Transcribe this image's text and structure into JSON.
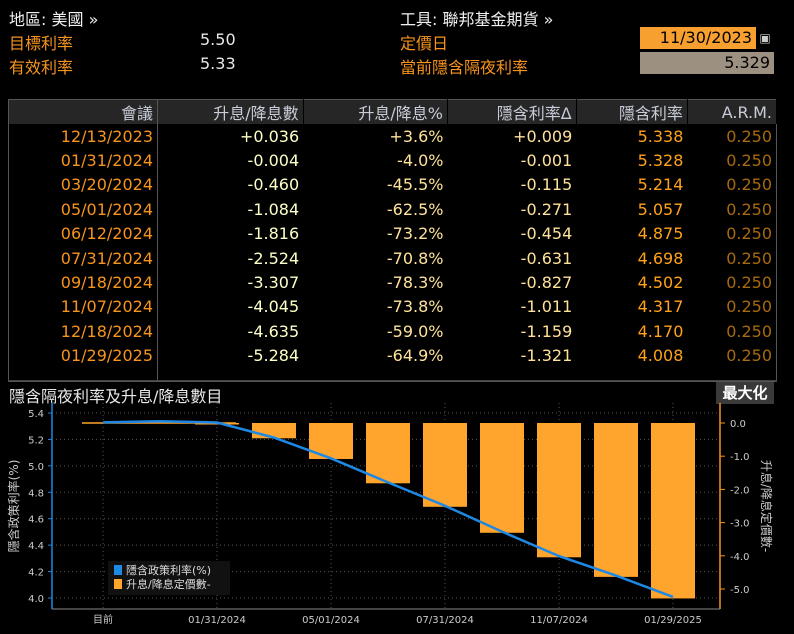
{
  "header": {
    "region_label": "地區: 美國 »",
    "instrument_label": "工具: 聯邦基金期貨 »",
    "target_rate_label": "目標利率",
    "target_rate_value": "5.50",
    "effective_rate_label": "有效利率",
    "effective_rate_value": "5.33",
    "pricing_date_label": "定價日",
    "pricing_date_value": "11/30/2023",
    "current_implied_label": "當前隱含隔夜利率",
    "current_implied_value": "5.329"
  },
  "table": {
    "columns": [
      "會議",
      "升息/降息數",
      "升息/降息%",
      "隱含利率Δ",
      "隱含利率",
      "A.R.M."
    ],
    "rows": [
      [
        "12/13/2023",
        "+0.036",
        "+3.6%",
        "+0.009",
        "5.338",
        "0.250"
      ],
      [
        "01/31/2024",
        "-0.004",
        "-4.0%",
        "-0.001",
        "5.328",
        "0.250"
      ],
      [
        "03/20/2024",
        "-0.460",
        "-45.5%",
        "-0.115",
        "5.214",
        "0.250"
      ],
      [
        "05/01/2024",
        "-1.084",
        "-62.5%",
        "-0.271",
        "5.057",
        "0.250"
      ],
      [
        "06/12/2024",
        "-1.816",
        "-73.2%",
        "-0.454",
        "4.875",
        "0.250"
      ],
      [
        "07/31/2024",
        "-2.524",
        "-70.8%",
        "-0.631",
        "4.698",
        "0.250"
      ],
      [
        "09/18/2024",
        "-3.307",
        "-78.3%",
        "-0.827",
        "4.502",
        "0.250"
      ],
      [
        "11/07/2024",
        "-4.045",
        "-73.8%",
        "-1.011",
        "4.317",
        "0.250"
      ],
      [
        "12/18/2024",
        "-4.635",
        "-59.0%",
        "-1.159",
        "4.170",
        "0.250"
      ],
      [
        "01/29/2025",
        "-5.284",
        "-64.9%",
        "-1.321",
        "4.008",
        "0.250"
      ]
    ]
  },
  "chart_panel": {
    "title": "隱含隔夜利率及升息/降息數目",
    "maximize_label": "最大化"
  },
  "chart_data": {
    "type": "bar+line",
    "categories": [
      "目前",
      "12/13/2023",
      "01/31/2024",
      "03/20/2024",
      "05/01/2024",
      "06/12/2024",
      "07/31/2024",
      "09/18/2024",
      "11/07/2024",
      "12/18/2024",
      "01/29/2025"
    ],
    "x_tick_labels": [
      "目前",
      "01/31/2024",
      "05/01/2024",
      "07/31/2024",
      "11/07/2024",
      "01/29/2025"
    ],
    "series": [
      {
        "name": "隱含政策利率(%)",
        "type": "line",
        "axis": "left",
        "color": "#1e88e5",
        "values": [
          5.329,
          5.338,
          5.328,
          5.214,
          5.057,
          4.875,
          4.698,
          4.502,
          4.317,
          4.17,
          4.008
        ]
      },
      {
        "name": "升息/降息定價數-",
        "type": "bar",
        "axis": "right",
        "color": "#ffa42c",
        "values": [
          null,
          0.036,
          -0.004,
          -0.46,
          -1.084,
          -1.816,
          -2.524,
          -3.307,
          -4.045,
          -4.635,
          -5.284
        ]
      }
    ],
    "ylabel_left": "隱含政策利率(%)",
    "ylabel_right": "升息/降息定價數-",
    "ylim_left": [
      3.9,
      5.45
    ],
    "yticks_left": [
      "4.0",
      "4.2",
      "4.4",
      "4.6",
      "4.8",
      "5.0",
      "5.2",
      "5.4"
    ],
    "ylim_right": [
      -5.5,
      0.3
    ],
    "yticks_right": [
      "0.0",
      "-1.0",
      "-2.0",
      "-3.0",
      "-4.0",
      "-5.0"
    ],
    "grid": true,
    "legend_position": "bottom-left"
  }
}
